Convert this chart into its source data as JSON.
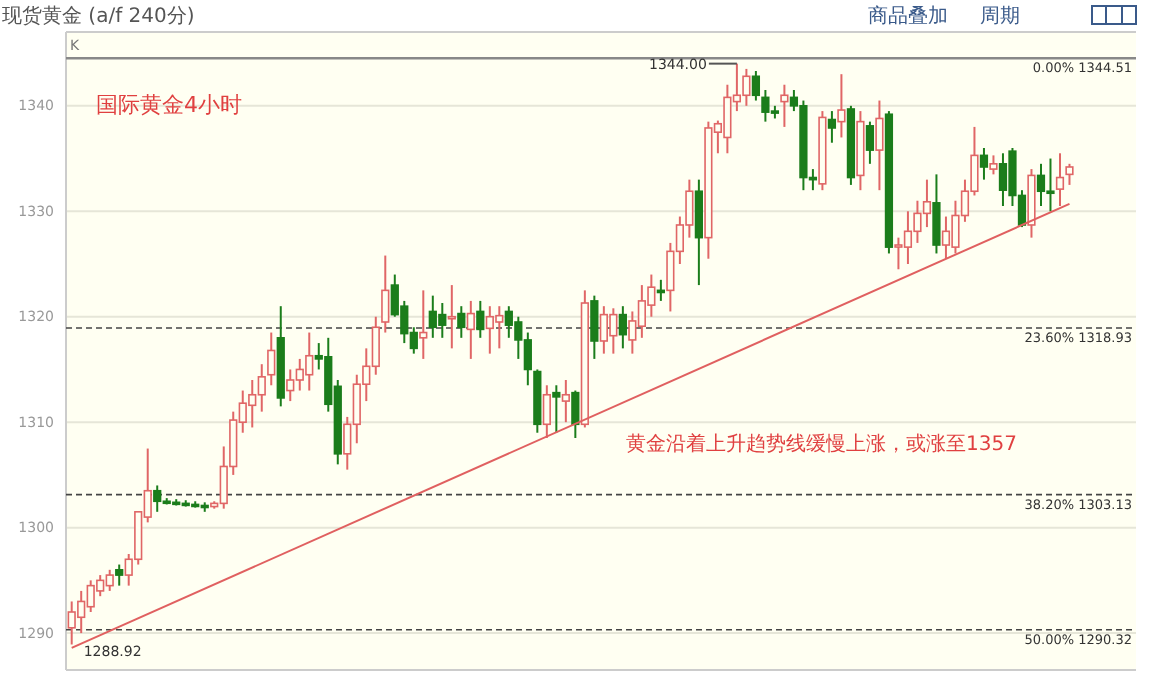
{
  "chart_data": {
    "type": "candlestick",
    "annotations": [
      "现货黄金 (a/f 240分)",
      "商品叠加",
      "周期",
      "K",
      "国际黄金4小时",
      "黄金沿着上升趋势线缓慢上涨，或涨至1357",
      {
        "text": "1344.00",
        "y": 1344
      },
      "1288.92"
    ],
    "categories": [
      null,
      null,
      null,
      null,
      null,
      null,
      null,
      null,
      null,
      null,
      null,
      null,
      null,
      null,
      null,
      null,
      null,
      null,
      null,
      null,
      null,
      null,
      null,
      null,
      null,
      null,
      null,
      null,
      null,
      null,
      null,
      null,
      null,
      null,
      null,
      null,
      null,
      null,
      null,
      null,
      null,
      null,
      null,
      null,
      null,
      null,
      null,
      null,
      null,
      null,
      null,
      null,
      null,
      null,
      null,
      null,
      null,
      null,
      null,
      null,
      null,
      null,
      null,
      null,
      null,
      null,
      null,
      null,
      null,
      null,
      null,
      null,
      null,
      null,
      null,
      null,
      null,
      null,
      null,
      null,
      null,
      null,
      null,
      null,
      null,
      null,
      null,
      null,
      null,
      null,
      null,
      null,
      null,
      null,
      null,
      null,
      null,
      null,
      null,
      null,
      null,
      null,
      null,
      null,
      null,
      null
    ],
    "ohlc": [
      [
        1290.5,
        1293,
        1288.92,
        1292
      ],
      [
        1291.5,
        1294,
        1290,
        1293
      ],
      [
        1292.5,
        1295,
        1292,
        1294.5
      ],
      [
        1294,
        1295.5,
        1293.5,
        1295
      ],
      [
        1294.5,
        1296,
        1294,
        1295.5
      ],
      [
        1296,
        1296.5,
        1294.5,
        1295.5
      ],
      [
        1295.5,
        1297.5,
        1294.5,
        1297
      ],
      [
        1297,
        1301.5,
        1296.5,
        1301.5
      ],
      [
        1301,
        1307.5,
        1300.5,
        1303.5
      ],
      [
        1303.5,
        1304,
        1301.5,
        1302.5
      ],
      [
        1302.5,
        1302.8,
        1302.2,
        1302.4
      ],
      [
        1302.4,
        1302.7,
        1302.1,
        1302.3
      ],
      [
        1302.3,
        1302.6,
        1302,
        1302.2
      ],
      [
        1302.2,
        1302.5,
        1301.9,
        1302.1
      ],
      [
        1302.1,
        1302.4,
        1301.5,
        1302
      ],
      [
        1302,
        1302.5,
        1301.8,
        1302.3
      ],
      [
        1302.3,
        1307.7,
        1301.8,
        1305.8
      ],
      [
        1305.8,
        1311,
        1305,
        1310.2
      ],
      [
        1310,
        1313,
        1309,
        1311.8
      ],
      [
        1311.6,
        1314,
        1309.5,
        1312.6
      ],
      [
        1312.6,
        1315.5,
        1311,
        1314.3
      ],
      [
        1314.5,
        1318.5,
        1313.5,
        1316.8
      ],
      [
        1318,
        1321,
        1311.5,
        1312.3
      ],
      [
        1313,
        1315,
        1312,
        1314
      ],
      [
        1314,
        1316,
        1313,
        1315
      ],
      [
        1314.5,
        1318.5,
        1313,
        1316.3
      ],
      [
        1316.3,
        1317.5,
        1315,
        1316
      ],
      [
        1316.2,
        1318,
        1311,
        1311.7
      ],
      [
        1313.4,
        1314,
        1306,
        1307
      ],
      [
        1307,
        1310.5,
        1305.5,
        1309.8
      ],
      [
        1309.8,
        1314.5,
        1308,
        1313.6
      ],
      [
        1313.6,
        1317,
        1312,
        1315.3
      ],
      [
        1315.3,
        1320,
        1314.5,
        1319
      ],
      [
        1319.5,
        1325.8,
        1318.5,
        1322.5
      ],
      [
        1323,
        1324,
        1320,
        1320.2
      ],
      [
        1321,
        1321.5,
        1317.5,
        1318.4
      ],
      [
        1318.5,
        1319,
        1316.5,
        1317
      ],
      [
        1318,
        1322.5,
        1316,
        1318.5
      ],
      [
        1320.5,
        1322,
        1318,
        1319
      ],
      [
        1320.2,
        1321.3,
        1318,
        1319.2
      ],
      [
        1320,
        1323,
        1317,
        1320
      ],
      [
        1320.3,
        1321,
        1318,
        1319
      ],
      [
        1318.8,
        1321.5,
        1316,
        1320.3
      ],
      [
        1320.5,
        1321.5,
        1318,
        1318.8
      ],
      [
        1318.9,
        1321,
        1316.5,
        1320
      ],
      [
        1319.5,
        1321,
        1317,
        1320.1
      ],
      [
        1320.5,
        1321,
        1318,
        1319.2
      ],
      [
        1319.5,
        1320,
        1316,
        1317.8
      ],
      [
        1317.8,
        1318.5,
        1313.5,
        1315
      ],
      [
        1314.8,
        1315,
        1309,
        1309.8
      ],
      [
        1309.8,
        1313.5,
        1308.5,
        1312.6
      ],
      [
        1312.8,
        1313.5,
        1309,
        1312.4
      ],
      [
        1312,
        1314,
        1310,
        1312.6
      ],
      [
        1312.8,
        1313,
        1308.5,
        1309.8
      ],
      [
        1309.8,
        1322.5,
        1309.5,
        1321.3
      ],
      [
        1321.5,
        1322,
        1316,
        1317.7
      ],
      [
        1317.7,
        1321,
        1316.5,
        1320.2
      ],
      [
        1318.2,
        1320.8,
        1316.5,
        1320.2
      ],
      [
        1320.2,
        1321,
        1317,
        1318.3
      ],
      [
        1317.8,
        1320.5,
        1316.5,
        1319.6
      ],
      [
        1319.1,
        1323,
        1318,
        1321.5
      ],
      [
        1321.1,
        1324,
        1320,
        1322.8
      ],
      [
        1322.5,
        1323.5,
        1321.5,
        1322.3
      ],
      [
        1322.5,
        1327,
        1320.5,
        1326.2
      ],
      [
        1326.2,
        1329.5,
        1325,
        1328.7
      ],
      [
        1328.7,
        1333,
        1327.5,
        1331.9
      ],
      [
        1331.9,
        1333,
        1323,
        1327.5
      ],
      [
        1327.5,
        1338.5,
        1325.5,
        1337.9
      ],
      [
        1337.5,
        1338.6,
        1335.5,
        1338.3
      ],
      [
        1337,
        1342,
        1335.5,
        1340.8
      ],
      [
        1340.4,
        1344,
        1339.5,
        1341
      ],
      [
        1341,
        1343.5,
        1340,
        1342.8
      ],
      [
        1342.8,
        1343.3,
        1340.5,
        1341
      ],
      [
        1340.8,
        1341.5,
        1338.5,
        1339.4
      ],
      [
        1339.5,
        1340,
        1338.8,
        1339.4
      ],
      [
        1340.4,
        1342,
        1338,
        1341
      ],
      [
        1340.8,
        1341.5,
        1339.5,
        1340
      ],
      [
        1340,
        1340.5,
        1332,
        1333.2
      ],
      [
        1333.2,
        1334,
        1332,
        1333
      ],
      [
        1332.6,
        1339.5,
        1332,
        1338.9
      ],
      [
        1338.7,
        1339.5,
        1336.5,
        1337.9
      ],
      [
        1338.5,
        1343,
        1337,
        1339.6
      ],
      [
        1339.7,
        1340,
        1332.5,
        1333.2
      ],
      [
        1333.4,
        1339.5,
        1332,
        1338.5
      ],
      [
        1338.1,
        1338.5,
        1334.5,
        1335.8
      ],
      [
        1335.8,
        1340.5,
        1332,
        1338.8
      ],
      [
        1339.2,
        1339.5,
        1326,
        1326.6
      ],
      [
        1326.8,
        1327.5,
        1324.5,
        1326.8
      ],
      [
        1326.6,
        1330,
        1325,
        1328.1
      ],
      [
        1328.1,
        1331,
        1327,
        1329.8
      ],
      [
        1329.8,
        1333,
        1328.5,
        1330.9
      ],
      [
        1330.8,
        1333.5,
        1326,
        1326.8
      ],
      [
        1326.8,
        1329.5,
        1325.5,
        1328.1
      ],
      [
        1326.6,
        1331,
        1326,
        1329.6
      ],
      [
        1329.6,
        1333,
        1329,
        1331.9
      ],
      [
        1331.9,
        1338,
        1331.5,
        1335.3
      ],
      [
        1335.3,
        1336,
        1333,
        1334.2
      ],
      [
        1334,
        1335.3,
        1333.5,
        1334.5
      ],
      [
        1334.5,
        1335.5,
        1330.5,
        1332
      ],
      [
        1335.7,
        1336,
        1330.5,
        1331.5
      ],
      [
        1331.5,
        1332,
        1328.5,
        1328.7
      ],
      [
        1328.7,
        1334,
        1327.5,
        1333.4
      ],
      [
        1333.4,
        1334.5,
        1330.5,
        1331.9
      ],
      [
        1331.9,
        1335,
        1330,
        1331.8
      ],
      [
        1332.1,
        1335.5,
        1330.5,
        1333.2
      ],
      [
        1333.5,
        1334.5,
        1332.5,
        1334.2
      ]
    ],
    "series": [
      {
        "type": "line",
        "values": [
          1288.6,
          null,
          null,
          null,
          null,
          null,
          null,
          null,
          null,
          null,
          null,
          null,
          null,
          null,
          null,
          null,
          null,
          null,
          null,
          null,
          null,
          null,
          null,
          null,
          null,
          null,
          null,
          null,
          null,
          null,
          null,
          null,
          null,
          null,
          null,
          null,
          null,
          null,
          null,
          null,
          null,
          null,
          null,
          null,
          null,
          null,
          null,
          null,
          null,
          null,
          null,
          null,
          null,
          null,
          null,
          null,
          null,
          null,
          null,
          null,
          null,
          null,
          null,
          null,
          null,
          null,
          null,
          null,
          null,
          null,
          null,
          null,
          null,
          null,
          null,
          null,
          null,
          null,
          null,
          null,
          null,
          null,
          null,
          null,
          null,
          null,
          null,
          null,
          null,
          null,
          null,
          null,
          null,
          null,
          null,
          null,
          null,
          null,
          null,
          null,
          null,
          null,
          null,
          null,
          null,
          1330.7
        ],
        "color": "#e06060"
      }
    ],
    "ylim": [
      1286.5,
      1347
    ],
    "yticks": [
      1290,
      1300,
      1310,
      1320,
      1330,
      1340
    ],
    "tick_labels": "y",
    "grid": "y",
    "ref_lines": [
      {
        "axis": "y",
        "value": 1344.51,
        "label": "0.00% 1344.51",
        "color": "#888888",
        "line_style": "solid"
      },
      {
        "axis": "y",
        "value": 1318.93,
        "label": "23.60% 1318.93",
        "color": "#444444",
        "line_style": "dashed"
      },
      {
        "axis": "y",
        "value": 1303.13,
        "label": "38.20% 1303.13",
        "color": "#444444",
        "line_style": "dashed"
      },
      {
        "axis": "y",
        "value": 1290.32,
        "label": "50.00% 1290.32",
        "color": "#444444",
        "line_style": "dashed"
      }
    ]
  }
}
